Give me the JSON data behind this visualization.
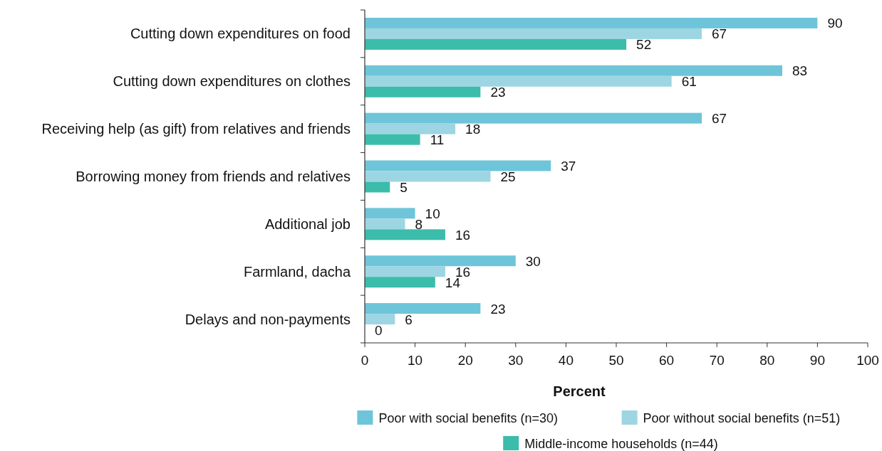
{
  "chart_data": {
    "type": "bar",
    "orientation": "horizontal",
    "xlabel": "Percent",
    "categories": [
      "Cutting down expenditures on food",
      "Cutting down expenditures on clothes",
      "Receiving help (as gift) from relatives and friends",
      "Borrowing money from friends and relatives",
      "Additional job",
      "Farmland, dacha",
      "Delays and non-payments"
    ],
    "series": [
      {
        "name": "Poor with social benefits (n=30)",
        "color": "#6ec5d9",
        "values": [
          90,
          83,
          67,
          37,
          10,
          30,
          23
        ]
      },
      {
        "name": "Poor without social benefits (n=51)",
        "color": "#9dd5e3",
        "values": [
          67,
          61,
          18,
          25,
          8,
          16,
          6
        ]
      },
      {
        "name": "Middle-income households (n=44)",
        "color": "#3cbcab",
        "values": [
          52,
          23,
          11,
          5,
          16,
          14,
          0
        ]
      }
    ],
    "xlim": [
      0,
      100
    ],
    "xticks": [
      0,
      10,
      20,
      30,
      40,
      50,
      60,
      70,
      80,
      90,
      100
    ],
    "data_labels": true,
    "legend": "bottom",
    "grid": false
  }
}
